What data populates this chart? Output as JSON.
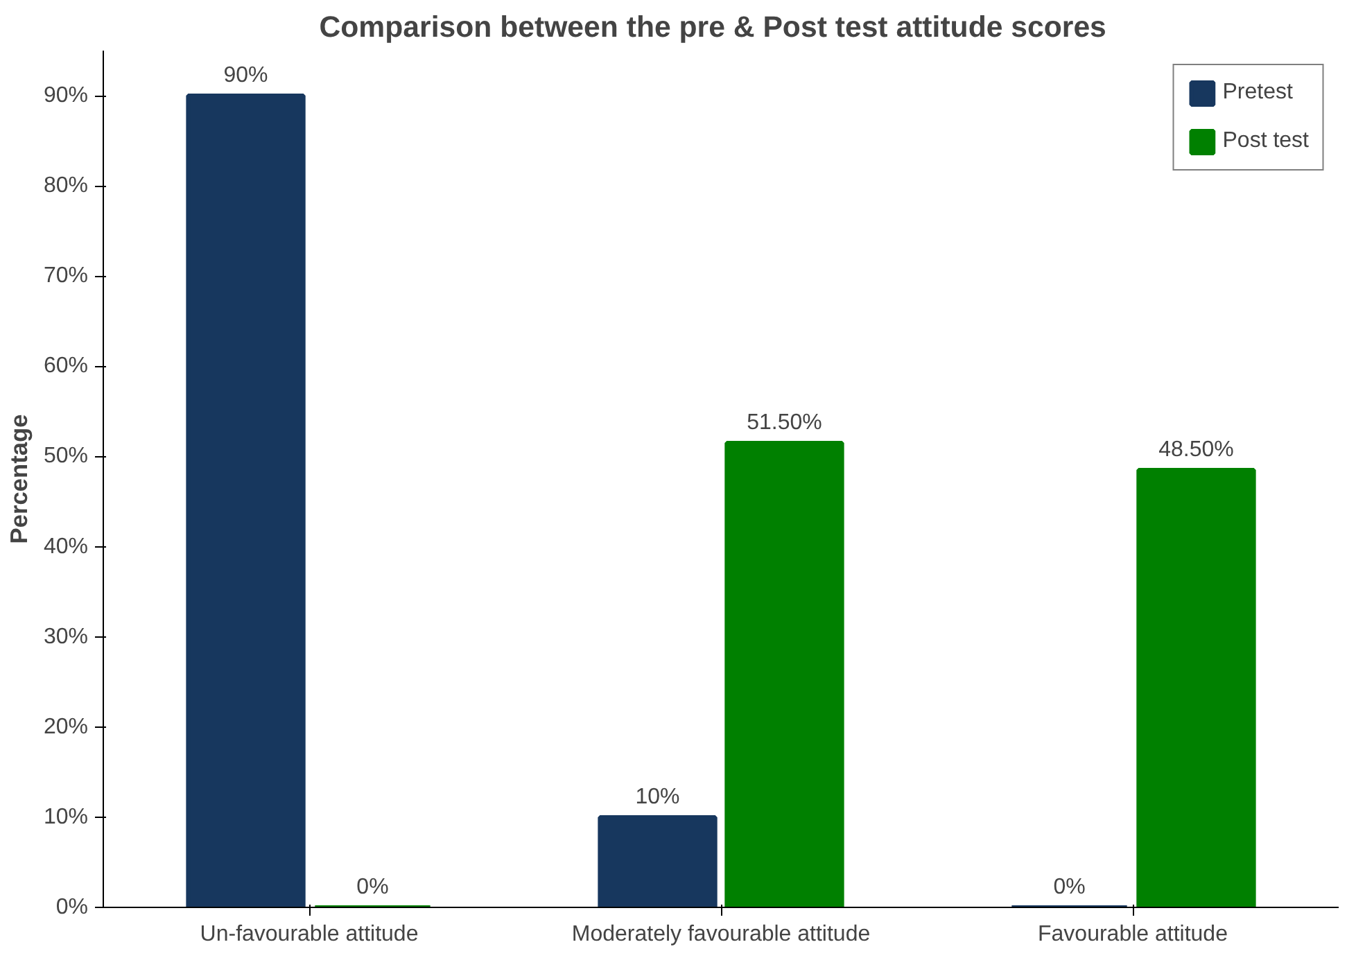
{
  "chart_data": {
    "type": "bar",
    "title": "Comparison  between the pre & Post test attitude  scores",
    "ylabel": "Percentage",
    "categories": [
      "Un-favourable attitude",
      "Moderately favourable attitude",
      "Favourable attitude"
    ],
    "series": [
      {
        "name": "Pretest",
        "color": "#17375e",
        "values": [
          90,
          10,
          0
        ],
        "value_labels": [
          "90%",
          "10%",
          "0%"
        ]
      },
      {
        "name": "Post test",
        "color": "#008000",
        "values": [
          0,
          51.5,
          48.5
        ],
        "value_labels": [
          "0%",
          "51.50%",
          "48.50%"
        ]
      }
    ],
    "ylim": [
      0,
      95
    ],
    "yticks": [
      {
        "value": 0,
        "label": "0%"
      },
      {
        "value": 10,
        "label": "10%"
      },
      {
        "value": 20,
        "label": "20%"
      },
      {
        "value": 30,
        "label": "30%"
      },
      {
        "value": 40,
        "label": "40%"
      },
      {
        "value": 50,
        "label": "50%"
      },
      {
        "value": 60,
        "label": "60%"
      },
      {
        "value": 70,
        "label": "70%"
      },
      {
        "value": 80,
        "label": "80%"
      },
      {
        "value": 90,
        "label": "90%"
      }
    ],
    "grid": false,
    "legend": "top right"
  }
}
